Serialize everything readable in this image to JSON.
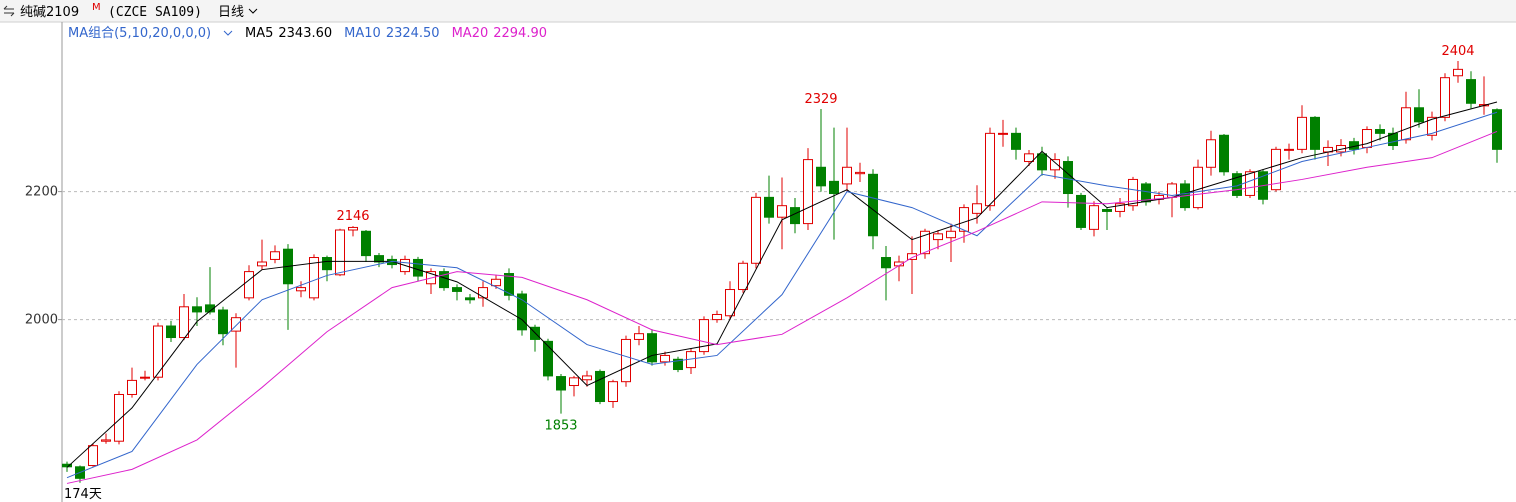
{
  "chart_data": {
    "type": "candlestick",
    "symbol": "纯碱2109",
    "symbol_mark": "M",
    "code": "(CZCE SA109)",
    "period": "日线",
    "ma_group": "MA组合(5,10,20,0,0,0)",
    "bottom_label": "174天",
    "ylim": [
      1715,
      2465
    ],
    "yticks": [
      2000,
      2200
    ],
    "grid": true,
    "up_color": "#e00000",
    "down_color": "#008000",
    "open": [
      1774,
      1770,
      1772,
      1810,
      1810,
      1883,
      1910,
      1910,
      1990,
      1972,
      2020,
      2023,
      2015,
      1982,
      2034,
      2084,
      2094,
      2110,
      2045,
      2034,
      2097,
      2070,
      2140,
      2138,
      2100,
      2094,
      2075,
      2094,
      2056,
      2075,
      2050,
      2034,
      2034,
      2053,
      2072,
      2040,
      1988,
      1966,
      1911,
      1897,
      1906,
      1919,
      1872,
      1903,
      1969,
      1978,
      1934,
      1938,
      1925,
      1950,
      2000,
      2006,
      2047,
      2088,
      2191,
      2160,
      2175,
      2150,
      2238,
      2216,
      2212,
      2228,
      2227,
      2097,
      2084,
      2094,
      2103,
      2125,
      2128,
      2138,
      2166,
      2178,
      2290,
      2291,
      2247,
      2259,
      2234,
      2247,
      2194,
      2141,
      2172,
      2169,
      2178,
      2212,
      2188,
      2191,
      2212,
      2175,
      2238,
      2288,
      2228,
      2194,
      2231,
      2203,
      2266,
      2266,
      2316,
      2262,
      2262,
      2278,
      2269,
      2297,
      2291,
      2281,
      2331,
      2288,
      2316,
      2381,
      2375,
      2334,
      2328
    ],
    "high": [
      1778,
      1772,
      1806,
      1822,
      1888,
      1925,
      1920,
      1995,
      1998,
      2040,
      2035,
      2082,
      2020,
      2010,
      2085,
      2125,
      2116,
      2118,
      2060,
      2102,
      2100,
      2142,
      2146,
      2140,
      2104,
      2100,
      2100,
      2098,
      2080,
      2080,
      2055,
      2040,
      2060,
      2070,
      2080,
      2045,
      1992,
      1970,
      1915,
      1912,
      1920,
      1922,
      1906,
      1975,
      1990,
      1985,
      1950,
      1942,
      1955,
      2005,
      2014,
      2060,
      2092,
      2198,
      2225,
      2222,
      2190,
      2268,
      2329,
      2300,
      2300,
      2245,
      2235,
      2115,
      2100,
      2130,
      2142,
      2140,
      2150,
      2180,
      2210,
      2300,
      2312,
      2300,
      2265,
      2270,
      2260,
      2255,
      2198,
      2185,
      2176,
      2190,
      2223,
      2215,
      2200,
      2215,
      2218,
      2250,
      2295,
      2290,
      2232,
      2235,
      2235,
      2270,
      2275,
      2335,
      2318,
      2280,
      2282,
      2284,
      2302,
      2305,
      2300,
      2356,
      2360,
      2325,
      2385,
      2404,
      2388,
      2380,
      2330
    ],
    "low": [
      1762,
      1745,
      1770,
      1806,
      1805,
      1878,
      1905,
      1905,
      1965,
      1968,
      1990,
      2008,
      1960,
      1925,
      2030,
      2078,
      2088,
      1984,
      2035,
      2030,
      2060,
      2068,
      2130,
      2090,
      2082,
      2080,
      2070,
      2060,
      2040,
      2045,
      2030,
      2025,
      2020,
      2048,
      2030,
      1975,
      1950,
      1905,
      1853,
      1880,
      1895,
      1868,
      1862,
      1895,
      1960,
      1928,
      1928,
      1918,
      1915,
      1945,
      1995,
      2000,
      2042,
      2080,
      2150,
      2110,
      2135,
      2140,
      2200,
      2125,
      2200,
      2215,
      2110,
      2030,
      2060,
      2040,
      2095,
      2110,
      2090,
      2120,
      2150,
      2170,
      2270,
      2250,
      2240,
      2225,
      2220,
      2175,
      2140,
      2130,
      2140,
      2160,
      2170,
      2178,
      2180,
      2160,
      2170,
      2172,
      2225,
      2225,
      2190,
      2190,
      2180,
      2200,
      2250,
      2260,
      2250,
      2240,
      2255,
      2258,
      2260,
      2280,
      2265,
      2275,
      2300,
      2280,
      2310,
      2370,
      2330,
      2320,
      2245
    ],
    "close": [
      1770,
      1752,
      1803,
      1812,
      1883,
      1905,
      1910,
      1990,
      1972,
      2020,
      2012,
      2012,
      1978,
      2003,
      2075,
      2090,
      2106,
      2056,
      2050,
      2097,
      2078,
      2140,
      2144,
      2100,
      2090,
      2086,
      2094,
      2068,
      2075,
      2050,
      2044,
      2031,
      2050,
      2063,
      2038,
      1984,
      1969,
      1912,
      1890,
      1909,
      1912,
      1872,
      1903,
      1969,
      1978,
      1934,
      1944,
      1922,
      1950,
      2000,
      2008,
      2047,
      2088,
      2191,
      2160,
      2178,
      2150,
      2250,
      2209,
      2197,
      2238,
      2230,
      2131,
      2081,
      2090,
      2103,
      2138,
      2134,
      2138,
      2175,
      2181,
      2291,
      2291,
      2266,
      2259,
      2234,
      2250,
      2197,
      2144,
      2178,
      2169,
      2181,
      2219,
      2184,
      2194,
      2212,
      2175,
      2238,
      2281,
      2231,
      2194,
      2231,
      2188,
      2266,
      2266,
      2316,
      2266,
      2269,
      2272,
      2266,
      2297,
      2291,
      2272,
      2331,
      2309,
      2316,
      2378,
      2391,
      2338,
      2336,
      2266
    ],
    "annotations": [
      {
        "value": 2404,
        "color": "#e00000"
      },
      {
        "value": 2329,
        "color": "#e00000"
      },
      {
        "value": 2146,
        "color": "#e00000"
      },
      {
        "value": 1853,
        "color": "#008000"
      }
    ],
    "series": [
      {
        "name": "MA5",
        "last": "2343.60",
        "color": "#000000",
        "x": [
          0,
          5,
          10,
          15,
          20,
          25,
          30,
          35,
          40,
          45,
          50,
          55,
          60,
          65,
          70,
          75,
          80,
          85,
          90,
          95,
          100,
          105,
          110
        ],
        "values": [
          1769,
          1862,
          1997,
          2078,
          2091,
          2091,
          2059,
          2000,
          1897,
          1944,
          1962,
          2156,
          2203,
          2125,
          2159,
          2263,
          2175,
          2191,
          2222,
          2253,
          2275,
          2313,
          2340
        ]
      },
      {
        "name": "MA10",
        "last": "2324.50",
        "color": "#3366cc",
        "x": [
          0,
          5,
          10,
          15,
          20,
          25,
          30,
          35,
          40,
          45,
          50,
          55,
          60,
          65,
          70,
          75,
          80,
          85,
          90,
          95,
          100,
          105,
          110
        ],
        "values": [
          1753,
          1794,
          1930,
          2031,
          2069,
          2091,
          2081,
          2031,
          1961,
          1930,
          1944,
          2039,
          2200,
          2175,
          2131,
          2227,
          2209,
          2194,
          2209,
          2247,
          2269,
          2291,
          2324
        ]
      },
      {
        "name": "MA20",
        "last": "2294.90",
        "color": "#dd22cc",
        "x": [
          0,
          5,
          10,
          15,
          20,
          25,
          30,
          35,
          40,
          45,
          50,
          55,
          60,
          65,
          70,
          75,
          80,
          85,
          90,
          95,
          100,
          105,
          110
        ],
        "values": [
          1744,
          1766,
          1812,
          1894,
          1981,
          2050,
          2075,
          2066,
          2031,
          1984,
          1961,
          1977,
          2034,
          2097,
          2138,
          2184,
          2181,
          2191,
          2203,
          2219,
          2238,
          2253,
          2294
        ]
      }
    ]
  }
}
